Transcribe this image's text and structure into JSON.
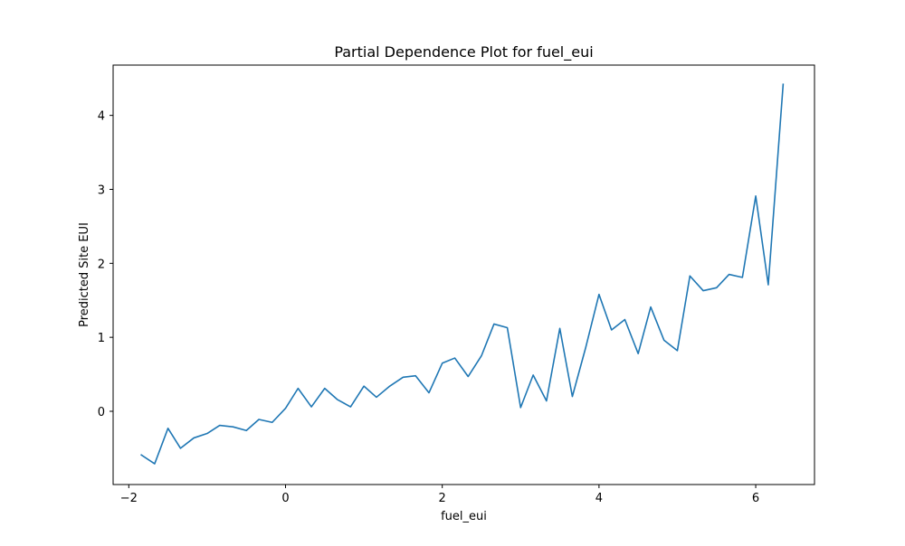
{
  "chart_data": {
    "type": "line",
    "title": "Partial Dependence Plot for fuel_eui",
    "xlabel": "fuel_eui",
    "ylabel": "Predicted Site EUI",
    "xlim": [
      -2.2,
      6.75
    ],
    "ylim": [
      -0.99,
      4.68
    ],
    "xticks": [
      -2,
      0,
      2,
      4,
      6
    ],
    "xtick_labels": [
      "−2",
      "0",
      "2",
      "4",
      "6"
    ],
    "yticks": [
      0,
      1,
      2,
      3,
      4
    ],
    "ytick_labels": [
      "0",
      "1",
      "2",
      "3",
      "4"
    ],
    "grid": false,
    "legend": "none",
    "series": [
      {
        "color": "#1f77b4",
        "x": [
          -1.84,
          -1.67,
          -1.5,
          -1.34,
          -1.17,
          -1.0,
          -0.84,
          -0.67,
          -0.5,
          -0.34,
          -0.17,
          0.0,
          0.16,
          0.33,
          0.5,
          0.66,
          0.83,
          1.0,
          1.16,
          1.33,
          1.5,
          1.66,
          1.83,
          2.0,
          2.16,
          2.33,
          2.5,
          2.66,
          2.83,
          3.0,
          3.16,
          3.33,
          3.5,
          3.66,
          3.83,
          4.0,
          4.16,
          4.33,
          4.5,
          4.66,
          4.83,
          5.0,
          5.16,
          5.33,
          5.5,
          5.66,
          5.83,
          6.0,
          6.16,
          6.35
        ],
        "values": [
          -0.59,
          -0.71,
          -0.23,
          -0.5,
          -0.36,
          -0.3,
          -0.19,
          -0.21,
          -0.26,
          -0.11,
          -0.15,
          0.04,
          0.31,
          0.06,
          0.31,
          0.16,
          0.06,
          0.34,
          0.19,
          0.34,
          0.46,
          0.48,
          0.25,
          0.65,
          0.72,
          0.47,
          0.75,
          1.18,
          1.13,
          0.05,
          0.49,
          0.14,
          1.12,
          0.2,
          0.86,
          1.58,
          1.1,
          1.24,
          0.78,
          1.41,
          0.96,
          0.82,
          1.83,
          1.63,
          1.67,
          1.85,
          1.81,
          2.91,
          1.71,
          4.42
        ]
      }
    ]
  }
}
